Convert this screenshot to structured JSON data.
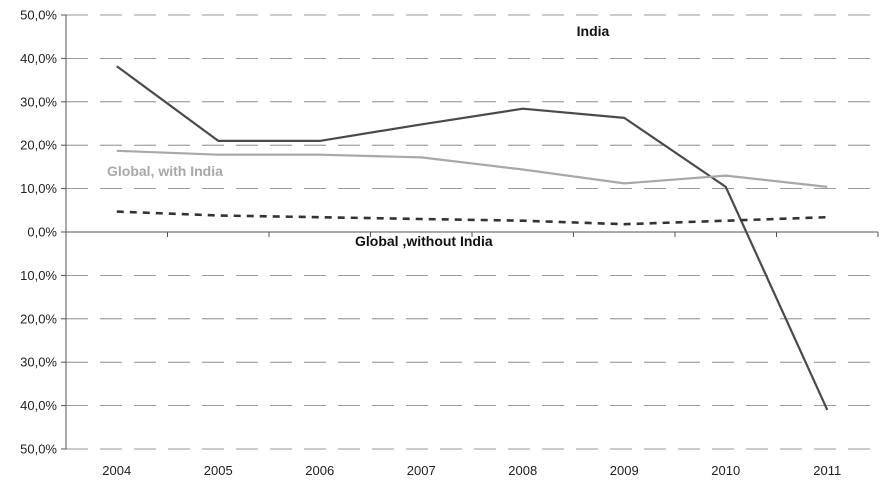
{
  "chart_data": {
    "type": "line",
    "title": "",
    "xlabel": "",
    "ylabel": "",
    "x": [
      "2004",
      "2005",
      "2006",
      "2007",
      "2008",
      "2009",
      "2010",
      "2011"
    ],
    "ylim": [
      -50,
      50
    ],
    "yticks": [
      50,
      40,
      30,
      20,
      10,
      0,
      -10,
      -20,
      -30,
      -40,
      -50
    ],
    "ytick_labels": [
      "50,0%",
      "40,0%",
      "30,0%",
      "20,0%",
      "10,0%",
      "0,0%",
      "10,0%",
      "20,0%",
      "30,0%",
      "40,0%",
      "50,0%"
    ],
    "grid": "horizontal dashed",
    "legend": "none (series labeled inline)",
    "series": [
      {
        "name": "India",
        "values": [
          38.2,
          21.0,
          21.0,
          24.8,
          28.4,
          26.3,
          10.4,
          -41.0
        ],
        "color": "#4a4a4a",
        "style": "solid",
        "label_color": "#111111"
      },
      {
        "name": "Global, with India",
        "values": [
          18.7,
          17.8,
          17.8,
          17.2,
          14.4,
          11.2,
          13.0,
          10.4
        ],
        "color": "#a8a8a8",
        "style": "solid",
        "label_color": "#a8a8a8"
      },
      {
        "name": "Global ,without India",
        "values": [
          4.7,
          3.8,
          3.4,
          3.0,
          2.6,
          1.8,
          2.6,
          3.4
        ],
        "color": "#333333",
        "style": "dashed",
        "label_color": "#111111"
      }
    ]
  }
}
